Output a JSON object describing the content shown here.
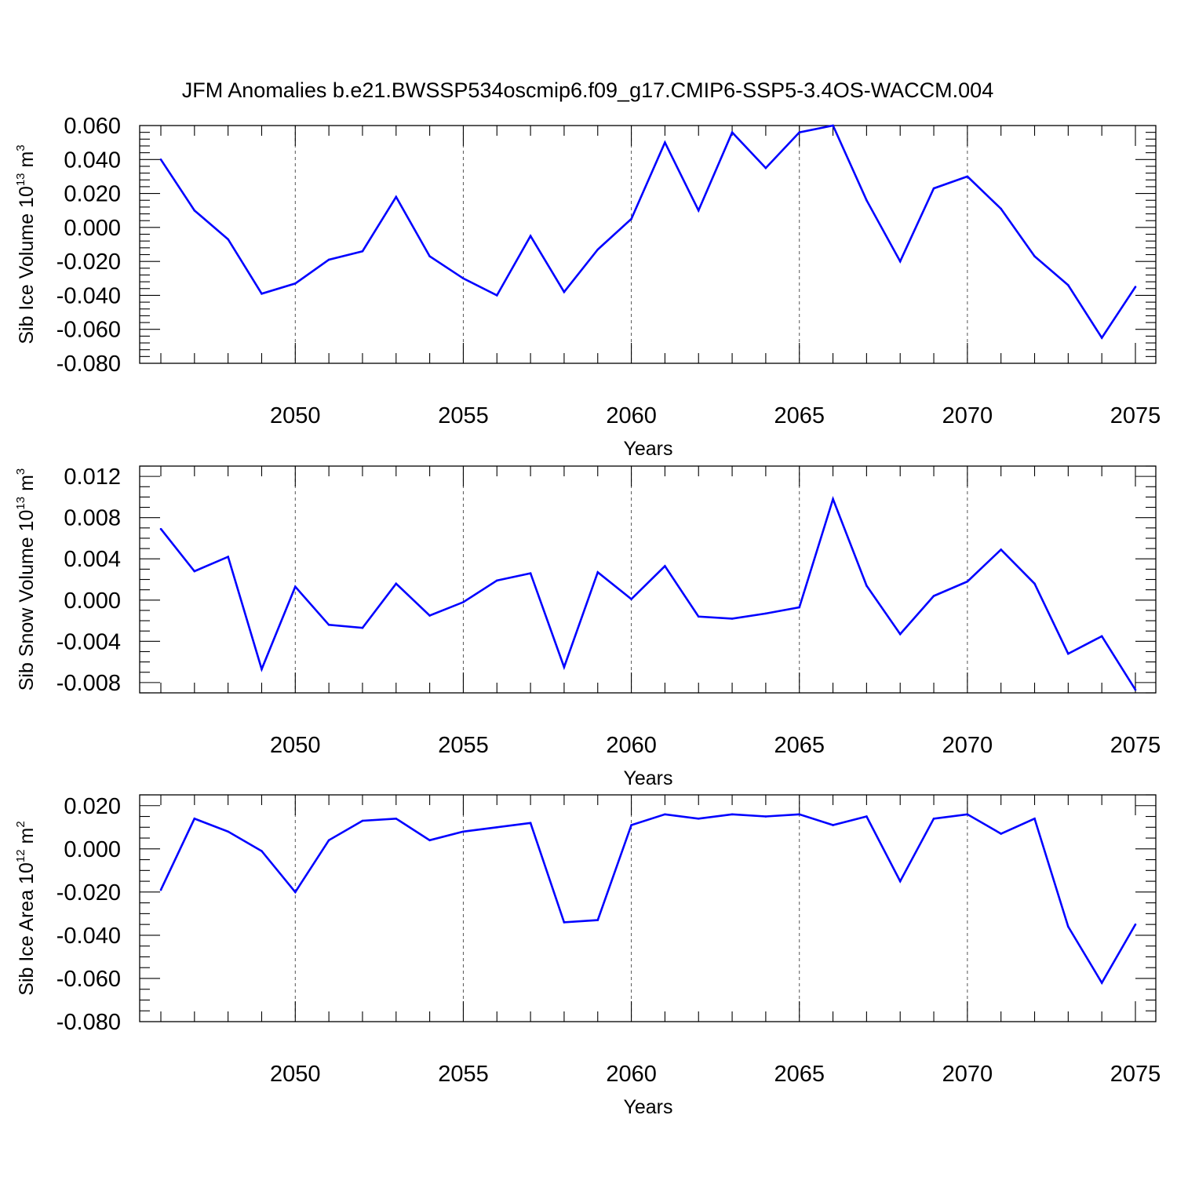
{
  "figure": {
    "title": "JFM Anomalies b.e21.BWSSP534oscmip6.f09_g17.CMIP6-SSP5-3.4OS-WACCM.004"
  },
  "chart_data": [
    {
      "type": "line",
      "title": "",
      "xlabel": "Years",
      "ylabel": "Sib Ice Volume 10",
      "ylabel_exponent": "13",
      "ylabel_unit": " m",
      "ylabel_unit_exponent": "3",
      "xlim": [
        2046,
        2075
      ],
      "ylim": [
        -0.08,
        0.06
      ],
      "yticks": [
        0.06,
        0.04,
        0.02,
        0.0,
        -0.02,
        -0.04,
        -0.06,
        -0.08
      ],
      "ytick_labels": [
        "0.060",
        "0.040",
        "0.020",
        "0.000",
        "-0.020",
        "-0.040",
        "-0.060",
        "-0.080"
      ],
      "yminor_step": 0.004,
      "xticks": [
        2050,
        2055,
        2060,
        2065,
        2070,
        2075
      ],
      "xtick_labels": [
        "2050",
        "2055",
        "2060",
        "2065",
        "2070",
        "2075"
      ],
      "grid": "vertical dashed at major x ticks",
      "series": [
        {
          "color": "#0000ff",
          "x": [
            2046,
            2047,
            2048,
            2049,
            2050,
            2051,
            2052,
            2053,
            2054,
            2055,
            2056,
            2057,
            2058,
            2059,
            2060,
            2061,
            2062,
            2063,
            2064,
            2065,
            2066,
            2067,
            2068,
            2069,
            2070,
            2071,
            2072,
            2073,
            2074,
            2075
          ],
          "values": [
            0.04,
            0.01,
            -0.007,
            -0.039,
            -0.033,
            -0.019,
            -0.014,
            0.018,
            -0.017,
            -0.03,
            -0.04,
            -0.005,
            -0.038,
            -0.013,
            0.005,
            0.05,
            0.01,
            0.056,
            0.035,
            0.056,
            0.06,
            0.016,
            -0.02,
            0.023,
            0.03,
            0.011,
            -0.017,
            -0.034,
            -0.065,
            -0.035
          ]
        }
      ]
    },
    {
      "type": "line",
      "title": "",
      "xlabel": "Years",
      "ylabel": "Sib Snow Volume 10",
      "ylabel_exponent": "13",
      "ylabel_unit": " m",
      "ylabel_unit_exponent": "3",
      "xlim": [
        2046,
        2075
      ],
      "ylim": [
        -0.009,
        0.013
      ],
      "yticks": [
        0.012,
        0.008,
        0.004,
        0.0,
        -0.004,
        -0.008
      ],
      "ytick_labels": [
        "0.012",
        "0.008",
        "0.004",
        "0.000",
        "-0.004",
        "-0.008"
      ],
      "yminor_step": 0.001,
      "xticks": [
        2050,
        2055,
        2060,
        2065,
        2070,
        2075
      ],
      "xtick_labels": [
        "2050",
        "2055",
        "2060",
        "2065",
        "2070",
        "2075"
      ],
      "grid": "vertical dashed at major x ticks",
      "series": [
        {
          "color": "#0000ff",
          "x": [
            2046,
            2047,
            2048,
            2049,
            2050,
            2051,
            2052,
            2053,
            2054,
            2055,
            2056,
            2057,
            2058,
            2059,
            2060,
            2061,
            2062,
            2063,
            2064,
            2065,
            2066,
            2067,
            2068,
            2069,
            2070,
            2071,
            2072,
            2073,
            2074,
            2075
          ],
          "values": [
            0.0069,
            0.0028,
            0.0042,
            -0.0067,
            0.0013,
            -0.0024,
            -0.0027,
            0.0016,
            -0.0015,
            -0.0002,
            0.0019,
            0.0026,
            -0.0065,
            0.0027,
            0.0001,
            0.0033,
            -0.0016,
            -0.0018,
            -0.0013,
            -0.0007,
            0.0098,
            0.0014,
            -0.0033,
            0.0004,
            0.0018,
            0.0049,
            0.0016,
            -0.0052,
            -0.0035,
            -0.0087
          ]
        }
      ]
    },
    {
      "type": "line",
      "title": "",
      "xlabel": "Years",
      "ylabel": "Sib Ice Area 10",
      "ylabel_exponent": "12",
      "ylabel_unit": " m",
      "ylabel_unit_exponent": "2",
      "xlim": [
        2046,
        2075
      ],
      "ylim": [
        -0.08,
        0.025
      ],
      "yticks": [
        0.02,
        0.0,
        -0.02,
        -0.04,
        -0.06,
        -0.08
      ],
      "ytick_labels": [
        "0.020",
        "0.000",
        "-0.020",
        "-0.040",
        "-0.060",
        "-0.080"
      ],
      "yminor_step": 0.005,
      "xticks": [
        2050,
        2055,
        2060,
        2065,
        2070,
        2075
      ],
      "xtick_labels": [
        "2050",
        "2055",
        "2060",
        "2065",
        "2070",
        "2075"
      ],
      "grid": "vertical dashed at major x ticks",
      "series": [
        {
          "color": "#0000ff",
          "x": [
            2046,
            2047,
            2048,
            2049,
            2050,
            2051,
            2052,
            2053,
            2054,
            2055,
            2056,
            2057,
            2058,
            2059,
            2060,
            2061,
            2062,
            2063,
            2064,
            2065,
            2066,
            2067,
            2068,
            2069,
            2070,
            2071,
            2072,
            2073,
            2074,
            2075
          ],
          "values": [
            -0.019,
            0.014,
            0.008,
            -0.001,
            -0.02,
            0.004,
            0.013,
            0.014,
            0.004,
            0.008,
            0.01,
            0.012,
            -0.034,
            -0.033,
            0.011,
            0.016,
            0.014,
            0.016,
            0.015,
            0.016,
            0.011,
            0.015,
            -0.015,
            0.014,
            0.016,
            0.007,
            0.014,
            -0.036,
            -0.062,
            -0.035
          ]
        }
      ]
    }
  ]
}
